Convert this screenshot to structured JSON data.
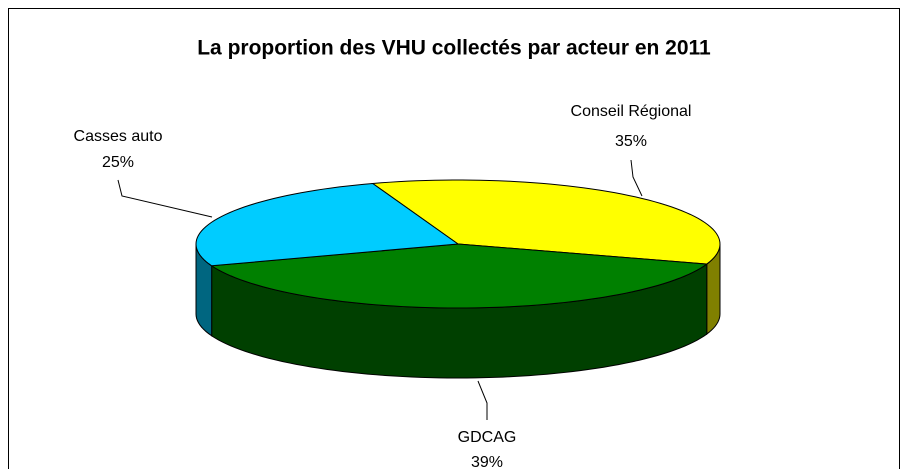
{
  "chart_data": {
    "type": "pie3d",
    "title": "La proportion des VHU collectés par acteur en 2011",
    "categories": [
      "Conseil Régional",
      "GDCAG",
      "Casses auto"
    ],
    "values": [
      35,
      39,
      25
    ],
    "value_labels": [
      "35%",
      "39%",
      "25%"
    ],
    "colors": [
      "#ffff00",
      "#008000",
      "#00ccff"
    ]
  }
}
